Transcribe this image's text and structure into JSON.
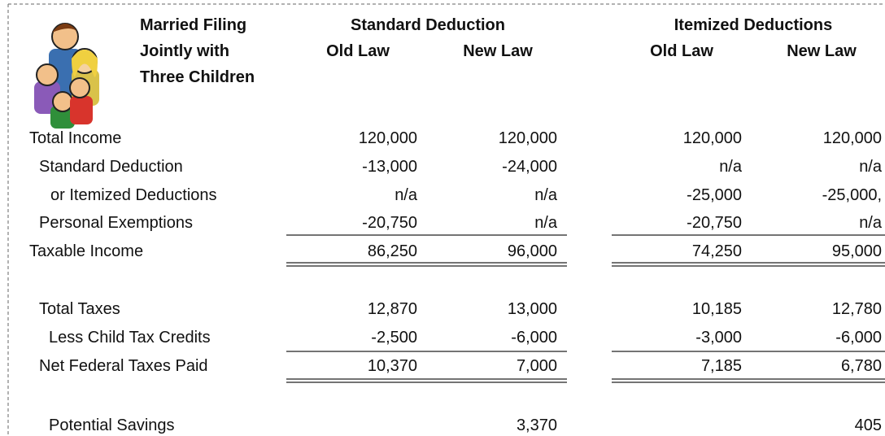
{
  "header": {
    "title_lines": [
      "Married Filing",
      "Jointly with",
      "Three Children"
    ],
    "groups": [
      {
        "title": "Standard Deduction",
        "columns": [
          "Old Law",
          "New Law"
        ]
      },
      {
        "title": "Itemized Deductions",
        "columns": [
          "Old Law",
          "New Law"
        ]
      }
    ]
  },
  "rows": [
    {
      "label": "Total Income",
      "values": [
        "120,000",
        "120,000",
        "120,000",
        "120,000"
      ]
    },
    {
      "label": "Standard Deduction",
      "values": [
        "-13,000",
        "-24,000",
        "n/a",
        "n/a"
      ]
    },
    {
      "label": "or Itemized Deductions",
      "values": [
        "n/a",
        "n/a",
        "-25,000",
        "-25,000,"
      ]
    },
    {
      "label": "Personal Exemptions",
      "values": [
        "-20,750",
        "n/a",
        "-20,750",
        "n/a"
      ]
    },
    {
      "label": "Taxable Income",
      "values": [
        "86,250",
        "96,000",
        "74,250",
        "95,000"
      ]
    },
    {
      "label": "Total Taxes",
      "values": [
        "12,870",
        "13,000",
        "10,185",
        "12,780"
      ]
    },
    {
      "label": "Less Child Tax Credits",
      "values": [
        "-2,500",
        "-6,000",
        "-3,000",
        "-6,000"
      ]
    },
    {
      "label": "Net Federal Taxes Paid",
      "values": [
        "10,370",
        "7,000",
        "7,185",
        "6,780"
      ]
    },
    {
      "label": "Potential Savings",
      "values": [
        null,
        "3,370",
        null,
        "405"
      ]
    }
  ]
}
